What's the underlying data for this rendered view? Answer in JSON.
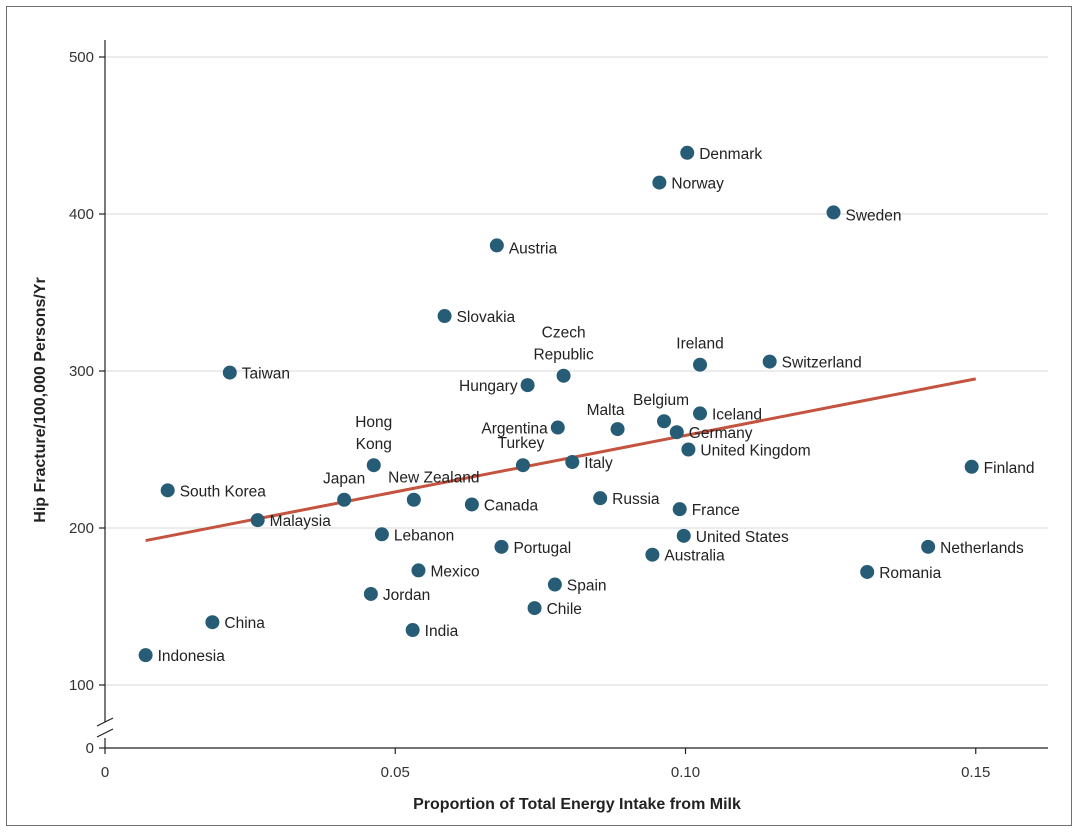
{
  "chart_data": {
    "type": "scatter",
    "title": "",
    "xlabel": "Proportion of Total Energy Intake from Milk",
    "ylabel": "Hip Fracture/100,000 Persons/Yr",
    "xlim": [
      0,
      0.164
    ],
    "ylim": [
      100,
      520
    ],
    "x_ticks": [
      {
        "value": 0,
        "label": "0"
      },
      {
        "value": 0.05,
        "label": "0.05"
      },
      {
        "value": 0.1,
        "label": "0.10"
      },
      {
        "value": 0.15,
        "label": "0.15"
      }
    ],
    "y_ticks": [
      {
        "value": 100,
        "label": "100"
      },
      {
        "value": 200,
        "label": "200"
      },
      {
        "value": 300,
        "label": "300"
      },
      {
        "value": 400,
        "label": "400"
      },
      {
        "value": 500,
        "label": "500"
      }
    ],
    "axis_break": {
      "y_label": "0"
    },
    "grid": true,
    "trendline": {
      "x": [
        0.007,
        0.15
      ],
      "y": [
        192,
        295
      ]
    },
    "points": [
      {
        "name": "Denmark",
        "x": 0.1003,
        "y": 439
      },
      {
        "name": "Norway",
        "x": 0.0955,
        "y": 420
      },
      {
        "name": "Sweden",
        "x": 0.1255,
        "y": 401
      },
      {
        "name": "Austria",
        "x": 0.0675,
        "y": 380
      },
      {
        "name": "Slovakia",
        "x": 0.0585,
        "y": 335
      },
      {
        "name": "Ireland",
        "x": 0.1025,
        "y": 304
      },
      {
        "name": "Switzerland",
        "x": 0.1145,
        "y": 306
      },
      {
        "name": "Taiwan",
        "x": 0.0215,
        "y": 299
      },
      {
        "name": "Czech Republic",
        "x": 0.079,
        "y": 297
      },
      {
        "name": "Hungary",
        "x": 0.0728,
        "y": 291
      },
      {
        "name": "Iceland",
        "x": 0.1025,
        "y": 273
      },
      {
        "name": "Belgium",
        "x": 0.0963,
        "y": 268
      },
      {
        "name": "Argentina",
        "x": 0.078,
        "y": 264
      },
      {
        "name": "Malta",
        "x": 0.0883,
        "y": 263
      },
      {
        "name": "Germany",
        "x": 0.0985,
        "y": 261
      },
      {
        "name": "United Kingdom",
        "x": 0.1005,
        "y": 250
      },
      {
        "name": "Italy",
        "x": 0.0805,
        "y": 242
      },
      {
        "name": "Hong Kong",
        "x": 0.0463,
        "y": 240
      },
      {
        "name": "Turkey",
        "x": 0.072,
        "y": 240
      },
      {
        "name": "Finland",
        "x": 0.1493,
        "y": 239
      },
      {
        "name": "South Korea",
        "x": 0.0108,
        "y": 224
      },
      {
        "name": "Russia",
        "x": 0.0853,
        "y": 219
      },
      {
        "name": "Japan",
        "x": 0.0412,
        "y": 218
      },
      {
        "name": "New Zealand",
        "x": 0.0532,
        "y": 218
      },
      {
        "name": "Canada",
        "x": 0.0632,
        "y": 215
      },
      {
        "name": "France",
        "x": 0.099,
        "y": 212
      },
      {
        "name": "Malaysia",
        "x": 0.0263,
        "y": 205
      },
      {
        "name": "Lebanon",
        "x": 0.0477,
        "y": 196
      },
      {
        "name": "United States",
        "x": 0.0997,
        "y": 195
      },
      {
        "name": "Portugal",
        "x": 0.0683,
        "y": 188
      },
      {
        "name": "Netherlands",
        "x": 0.1418,
        "y": 188
      },
      {
        "name": "Australia",
        "x": 0.0943,
        "y": 183
      },
      {
        "name": "Mexico",
        "x": 0.054,
        "y": 173
      },
      {
        "name": "Romania",
        "x": 0.1313,
        "y": 172
      },
      {
        "name": "Spain",
        "x": 0.0775,
        "y": 164
      },
      {
        "name": "Jordan",
        "x": 0.0458,
        "y": 158
      },
      {
        "name": "Chile",
        "x": 0.074,
        "y": 149
      },
      {
        "name": "China",
        "x": 0.0185,
        "y": 140
      },
      {
        "name": "India",
        "x": 0.053,
        "y": 135
      },
      {
        "name": "Indonesia",
        "x": 0.007,
        "y": 119
      }
    ]
  }
}
